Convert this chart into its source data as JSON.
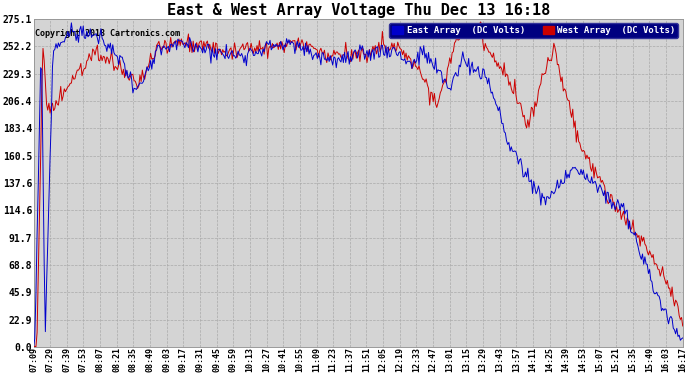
{
  "title": "East & West Array Voltage Thu Dec 13 16:18",
  "copyright": "Copyright 2018 Cartronics.com",
  "legend_east": "East Array  (DC Volts)",
  "legend_west": "West Array  (DC Volts)",
  "east_color": "#0000cc",
  "west_color": "#cc0000",
  "bg_color": "#ffffff",
  "plot_bg_color": "#d4d4d4",
  "grid_color": "#aaaaaa",
  "yticks": [
    0.0,
    22.9,
    45.9,
    68.8,
    91.7,
    114.6,
    137.6,
    160.5,
    183.4,
    206.4,
    229.3,
    252.2,
    275.1
  ],
  "ylim": [
    0.0,
    275.1
  ],
  "xtick_labels": [
    "07:09",
    "07:29",
    "07:39",
    "07:53",
    "08:07",
    "08:21",
    "08:35",
    "08:49",
    "09:03",
    "09:17",
    "09:31",
    "09:45",
    "09:59",
    "10:13",
    "10:27",
    "10:41",
    "10:55",
    "11:09",
    "11:23",
    "11:37",
    "11:51",
    "12:05",
    "12:19",
    "12:33",
    "12:47",
    "13:01",
    "13:15",
    "13:29",
    "13:43",
    "13:57",
    "14:11",
    "14:25",
    "14:39",
    "14:53",
    "15:07",
    "15:21",
    "15:35",
    "15:49",
    "16:03",
    "16:17"
  ]
}
